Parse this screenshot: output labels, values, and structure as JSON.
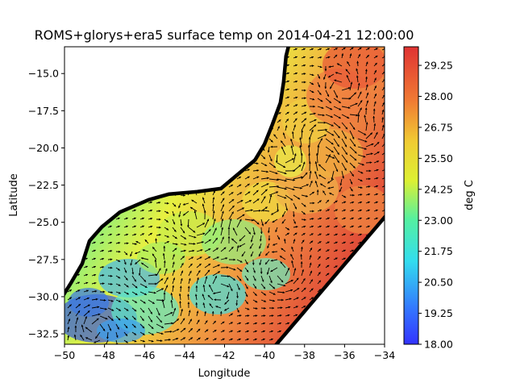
{
  "chart_data": {
    "type": "heatmap",
    "title": "ROMS+glorys+era5 surface temp on 2014-04-21 12:00:00",
    "xlabel": "Longitude",
    "ylabel": "Latitude",
    "xlim": [
      -50,
      -34
    ],
    "ylim": [
      -33.2,
      -13.2
    ],
    "x_ticks": [
      -50,
      -48,
      -46,
      -44,
      -42,
      -40,
      -38,
      -36,
      -34
    ],
    "x_tick_labels": [
      "−50",
      "−48",
      "−46",
      "−44",
      "−42",
      "−40",
      "−38",
      "−36",
      "−34"
    ],
    "y_ticks": [
      -15,
      -17.5,
      -20,
      -22.5,
      -25,
      -27.5,
      -30,
      -32.5
    ],
    "y_tick_labels": [
      "−15.0",
      "−17.5",
      "−20.0",
      "−22.5",
      "−25.0",
      "−27.5",
      "−30.0",
      "−32.5"
    ],
    "colorbar": {
      "label": "deg C",
      "min": 18.0,
      "max": 30.0,
      "ticks": [
        18.0,
        19.25,
        20.5,
        21.75,
        23.0,
        24.25,
        25.5,
        26.75,
        28.0,
        29.25
      ],
      "tick_labels": [
        "18.00",
        "19.25",
        "20.50",
        "21.75",
        "23.00",
        "24.25",
        "25.50",
        "26.75",
        "28.00",
        "29.25"
      ],
      "colormap": "jet"
    },
    "overlay": "surface current vectors (quiver)",
    "grid": false
  }
}
